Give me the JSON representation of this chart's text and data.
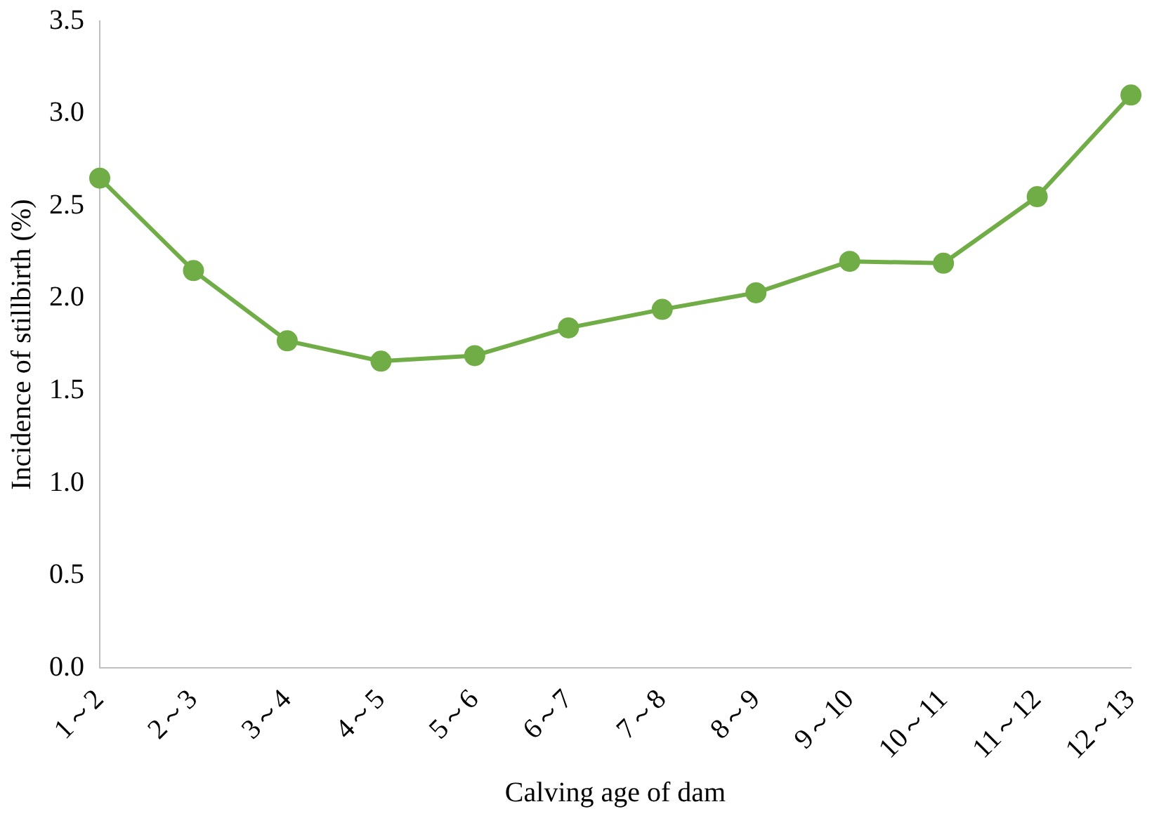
{
  "chart_data": {
    "type": "line",
    "xlabel": "Calving age of dam",
    "ylabel": "Incidence of stillbirth (%)",
    "categories": [
      "1～2",
      "2～3",
      "3～4",
      "4～5",
      "5～6",
      "6～7",
      "7～8",
      "8～9",
      "9～10",
      "10～11",
      "11～12",
      "12～13"
    ],
    "series": [
      {
        "color": "#70ad47",
        "values": [
          2.65,
          2.15,
          1.77,
          1.66,
          1.69,
          1.84,
          1.94,
          2.03,
          2.2,
          2.19,
          2.55,
          3.1
        ]
      }
    ],
    "ylim": [
      0,
      3.5
    ],
    "yticks": [
      {
        "value": 0,
        "label": "0.0"
      },
      {
        "value": 0.5,
        "label": "0.5"
      },
      {
        "value": 1,
        "label": "1.0"
      },
      {
        "value": 1.5,
        "label": "1.5"
      },
      {
        "value": 2,
        "label": "2.0"
      },
      {
        "value": 2.5,
        "label": "2.5"
      },
      {
        "value": 3,
        "label": "3.0"
      },
      {
        "value": 3.5,
        "label": "3.5"
      }
    ],
    "grid": false,
    "legend": false,
    "marker": "circle",
    "line_style": "solid"
  }
}
